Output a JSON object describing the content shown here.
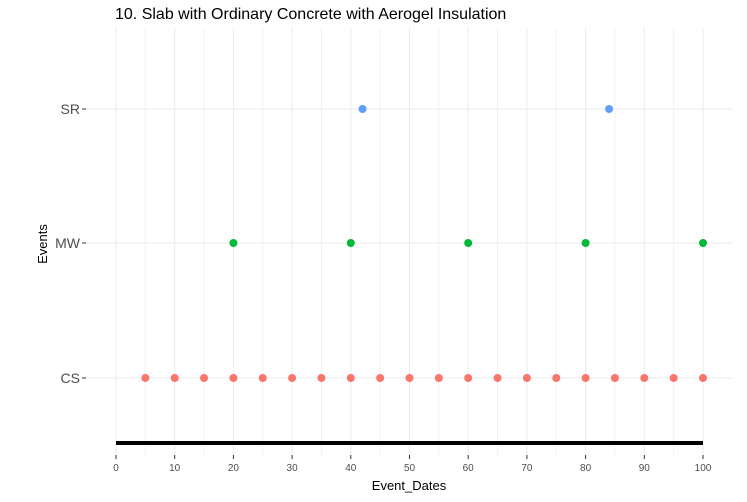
{
  "chart_data": {
    "type": "scatter",
    "title": "10. Slab with Ordinary Concrete with  Aerogel Insulation",
    "xlabel": "Event_Dates",
    "ylabel": "Events",
    "xlim": [
      -2.5,
      102.5
    ],
    "x_ticks": [
      0,
      10,
      20,
      30,
      40,
      50,
      60,
      70,
      80,
      90,
      100
    ],
    "x_tick_labels": [
      "0",
      "10",
      "20",
      "30",
      "40",
      "50",
      "60",
      "70",
      "80",
      "90",
      "100"
    ],
    "categories": [
      "CS",
      "MW",
      "SR"
    ],
    "grid": true,
    "legend": "none",
    "baseline": {
      "x": [
        0,
        100
      ],
      "color": "#000000"
    },
    "series": [
      {
        "category": "CS",
        "color": "#F8766D",
        "x": [
          5,
          10,
          15,
          20,
          25,
          30,
          35,
          40,
          45,
          50,
          55,
          60,
          65,
          70,
          75,
          80,
          85,
          90,
          95,
          100
        ]
      },
      {
        "category": "MW",
        "color": "#00BA38",
        "x": [
          20,
          40,
          60,
          80,
          100
        ]
      },
      {
        "category": "SR",
        "color": "#619CFF",
        "x": [
          42,
          84
        ]
      }
    ]
  }
}
